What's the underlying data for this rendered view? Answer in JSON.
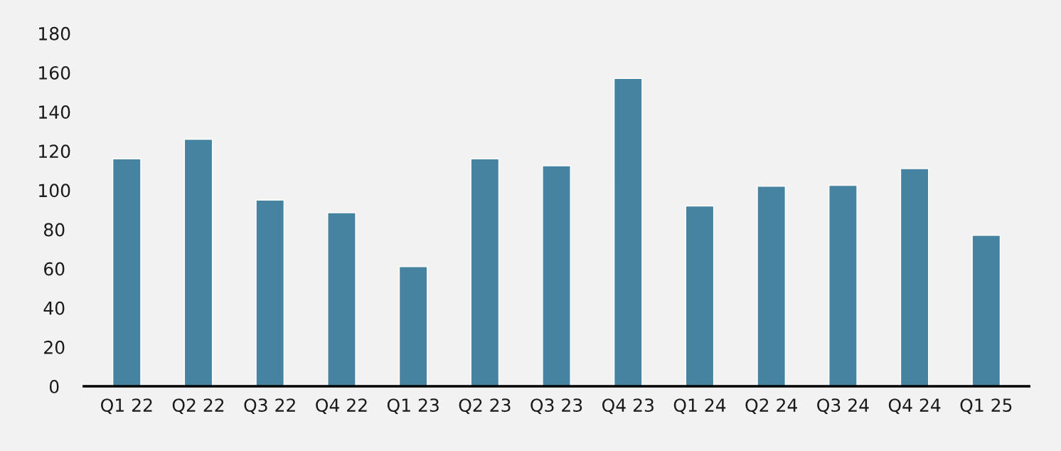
{
  "chart_data": {
    "type": "bar",
    "categories": [
      "Q1 22",
      "Q2 22",
      "Q3 22",
      "Q4 22",
      "Q1 23",
      "Q2 23",
      "Q3 23",
      "Q4 23",
      "Q1 24",
      "Q2 24",
      "Q3 24",
      "Q4 24",
      "Q1 25"
    ],
    "values": [
      116,
      126,
      95,
      88.5,
      61,
      116,
      112.5,
      157,
      92,
      102,
      102.5,
      111,
      77
    ],
    "color": "#4583a1",
    "ylim": [
      0,
      180
    ],
    "yticks": [
      0,
      20,
      40,
      60,
      80,
      100,
      120,
      140,
      160,
      180
    ],
    "grid": false
  }
}
